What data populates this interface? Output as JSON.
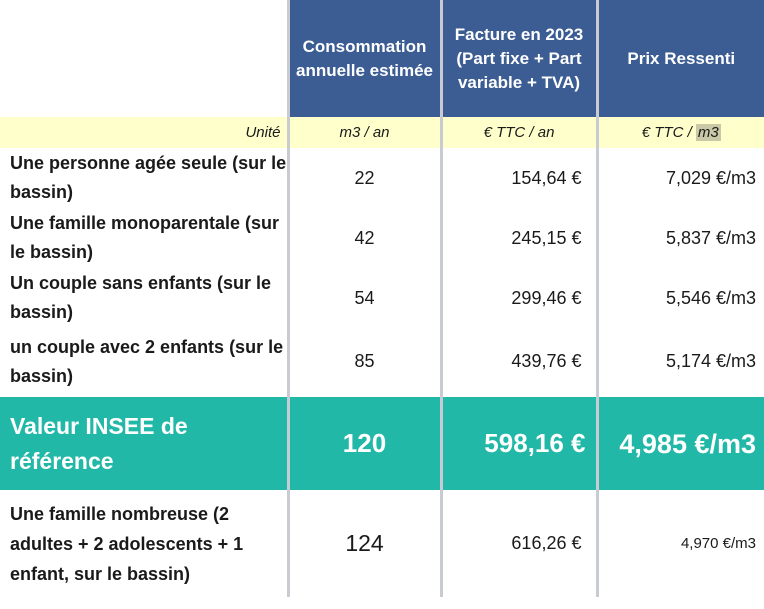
{
  "headers": {
    "consumption": "Consommation annuelle estimée",
    "bill": "Facture en 2023 (Part fixe + Part variable + TVA)",
    "price": "Prix Ressenti"
  },
  "units": {
    "label": "Unité",
    "consumption": "m3 / an",
    "bill": "€ TTC / an",
    "price_prefix": "€ TTC / ",
    "price_suffix": "m3"
  },
  "rows": [
    {
      "label": "Une personne agée seule (sur le bassin)",
      "consumption": "22",
      "bill": "154,64 €",
      "price": "7,029 €/m3"
    },
    {
      "label": "Une famille monoparentale (sur le bassin)",
      "consumption": "42",
      "bill": "245,15 €",
      "price": "5,837 €/m3"
    },
    {
      "label": "Un couple sans enfants (sur le bassin)",
      "consumption": "54",
      "bill": "299,46 €",
      "price": "5,546 €/m3"
    },
    {
      "label": "un couple avec 2 enfants (sur le bassin)",
      "consumption": "85",
      "bill": "439,76 €",
      "price": "5,174 €/m3"
    }
  ],
  "insee": {
    "label": "Valeur INSEE de référence",
    "consumption": "120",
    "bill": "598,16 €",
    "price": "4,985 €/m3"
  },
  "large_family": {
    "label": "Une famille nombreuse (2 adultes + 2 adolescents + 1 enfant, sur le bassin)",
    "consumption": "124",
    "bill": "616,26 €",
    "price": "4,970 €/m3"
  },
  "colors": {
    "header_bg": "#3c5d93",
    "unit_bg": "#ffffcc",
    "insee_bg": "#22b8a8"
  }
}
